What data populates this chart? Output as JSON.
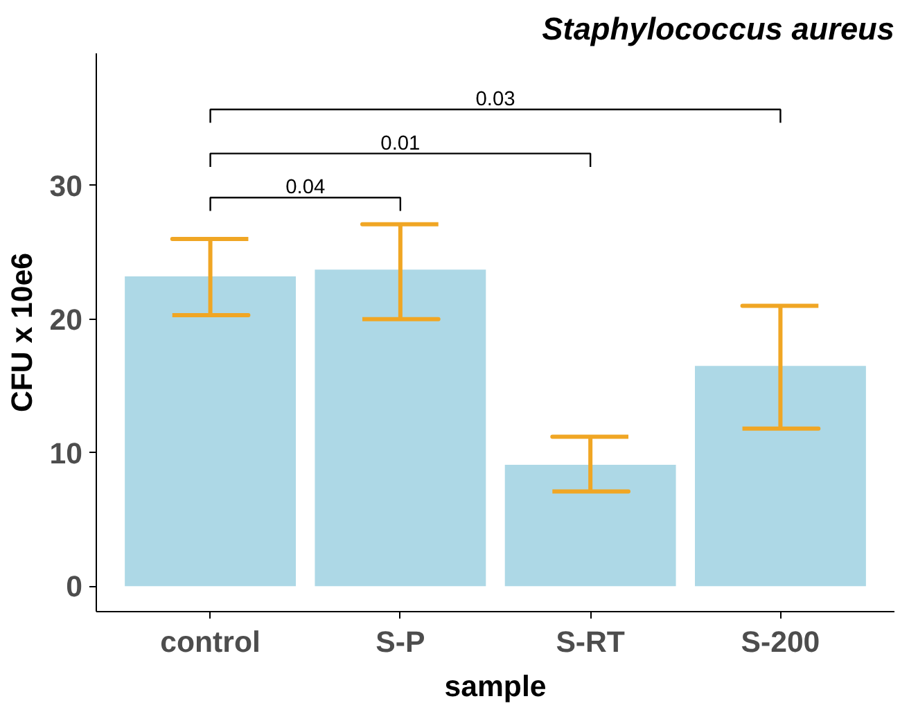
{
  "chart_data": {
    "type": "bar",
    "title": "Staphylococcus aureus",
    "xlabel": "sample",
    "ylabel": "CFU x 10e6",
    "categories": [
      "control",
      "S-P",
      "S-RT",
      "S-200"
    ],
    "values": [
      23.2,
      23.7,
      9.1,
      16.5
    ],
    "errors": [
      [
        20.3,
        26.0
      ],
      [
        20.0,
        27.1
      ],
      [
        7.1,
        11.2
      ],
      [
        11.8,
        21.0
      ]
    ],
    "color": "#add8e6",
    "ylim": [
      -1.9,
      39.9
    ],
    "yticks": [
      0,
      10,
      20,
      30
    ],
    "annotations": [
      "0.04",
      "0.01",
      "0.03"
    ],
    "grid": false
  }
}
